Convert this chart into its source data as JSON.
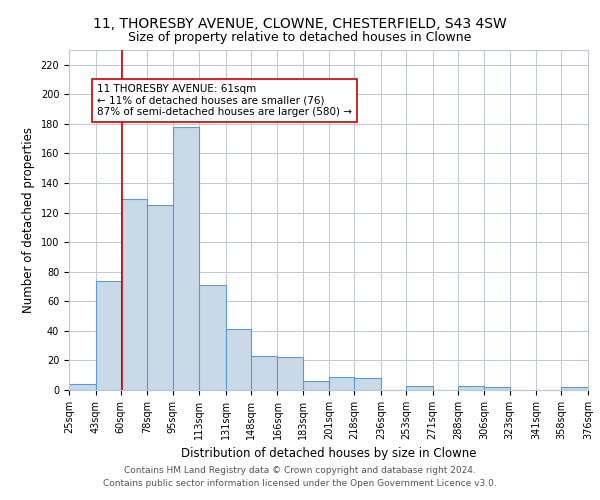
{
  "title1": "11, THORESBY AVENUE, CLOWNE, CHESTERFIELD, S43 4SW",
  "title2": "Size of property relative to detached houses in Clowne",
  "xlabel": "Distribution of detached houses by size in Clowne",
  "ylabel": "Number of detached properties",
  "bar_edges": [
    25,
    43,
    60,
    78,
    95,
    113,
    131,
    148,
    166,
    183,
    201,
    218,
    236,
    253,
    271,
    288,
    306,
    323,
    341,
    358,
    376
  ],
  "bar_heights": [
    4,
    74,
    129,
    125,
    178,
    71,
    41,
    23,
    22,
    6,
    9,
    8,
    0,
    3,
    0,
    3,
    2,
    0,
    0,
    2
  ],
  "bar_color": "#c9d9e8",
  "bar_edge_color": "#5b9bd5",
  "bar_linewidth": 0.8,
  "vline_x": 61,
  "vline_color": "#cc0000",
  "annotation_text": "11 THORESBY AVENUE: 61sqm\n← 11% of detached houses are smaller (76)\n87% of semi-detached houses are larger (580) →",
  "annotation_box_color": "white",
  "annotation_border_color": "#cc0000",
  "ylim": [
    0,
    230
  ],
  "yticks": [
    0,
    20,
    40,
    60,
    80,
    100,
    120,
    140,
    160,
    180,
    200,
    220
  ],
  "tick_labels": [
    "25sqm",
    "43sqm",
    "60sqm",
    "78sqm",
    "95sqm",
    "113sqm",
    "131sqm",
    "148sqm",
    "166sqm",
    "183sqm",
    "201sqm",
    "218sqm",
    "236sqm",
    "253sqm",
    "271sqm",
    "288sqm",
    "306sqm",
    "323sqm",
    "341sqm",
    "358sqm",
    "376sqm"
  ],
  "footer_text": "Contains HM Land Registry data © Crown copyright and database right 2024.\nContains public sector information licensed under the Open Government Licence v3.0.",
  "bg_color": "#ffffff",
  "grid_color": "#c0c8d8",
  "title1_fontsize": 10,
  "title2_fontsize": 9,
  "xlabel_fontsize": 8.5,
  "ylabel_fontsize": 8.5,
  "tick_fontsize": 7,
  "annotation_fontsize": 7.5,
  "footer_fontsize": 6.5
}
